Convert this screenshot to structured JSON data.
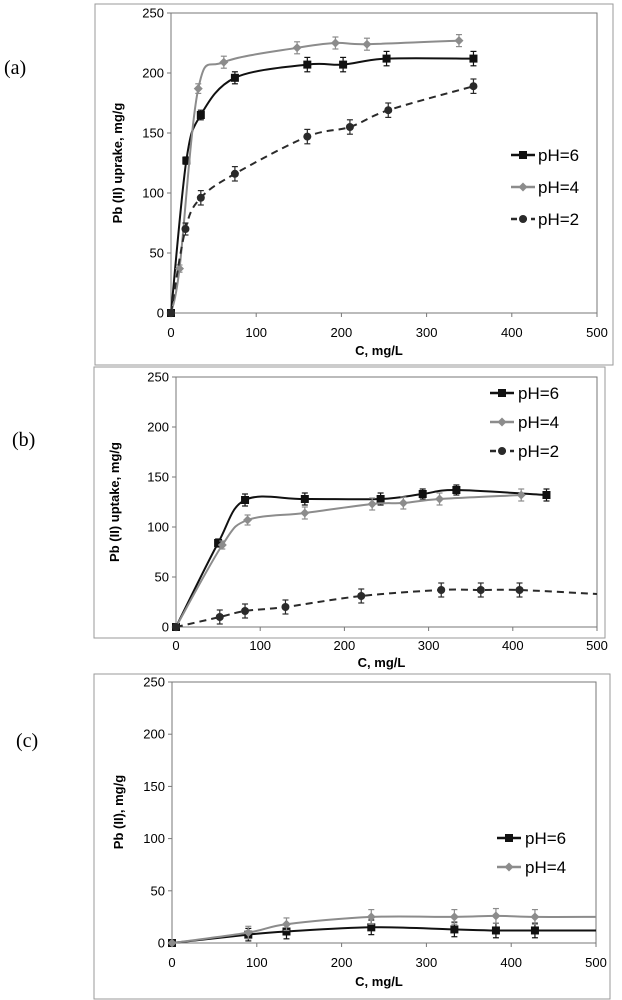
{
  "panels": [
    {
      "label": "(a)",
      "xlabel": "C, mg/L",
      "ylabel": "Pb (II) uprake, mg/g",
      "xticks": [
        "0",
        "100",
        "200",
        "300",
        "400",
        "500"
      ],
      "yticks": [
        "0",
        "50",
        "100",
        "150",
        "200",
        "250"
      ],
      "legend": [
        "pH=6",
        "pH=4",
        "pH=2"
      ]
    },
    {
      "label": "(b)",
      "xlabel": "C, mg/L",
      "ylabel": "Pb (II) uptake, mg/g",
      "xticks": [
        "0",
        "100",
        "200",
        "300",
        "400",
        "500"
      ],
      "yticks": [
        "0",
        "50",
        "100",
        "150",
        "200",
        "250"
      ],
      "legend": [
        "pH=6",
        "pH=4",
        "pH=2"
      ]
    },
    {
      "label": "(c)",
      "xlabel": "C, mg/L",
      "ylabel": "Pb (II), mg/g",
      "xticks": [
        "0",
        "100",
        "200",
        "300",
        "400",
        "500"
      ],
      "yticks": [
        "0",
        "50",
        "100",
        "150",
        "200",
        "250"
      ],
      "legend": [
        "pH=6",
        "pH=4"
      ]
    }
  ],
  "colors": {
    "pH6": "#111111",
    "pH4": "#8c8c8c",
    "pH2": "#2a2a2a",
    "frame": "#777777",
    "border": "#9a9a9a"
  },
  "chart_data": [
    {
      "type": "line",
      "title": "(a)",
      "xlabel": "C, mg/L",
      "ylabel": "Pb (II) uprake, mg/g",
      "xlim": [
        0,
        500
      ],
      "ylim": [
        0,
        250
      ],
      "series": [
        {
          "name": "pH=6",
          "marker": "square",
          "dash": false,
          "x": [
            0,
            18,
            35,
            75,
            160,
            202,
            253,
            355
          ],
          "y": [
            0,
            127,
            165,
            196,
            207,
            207,
            212,
            212
          ],
          "err": [
            0,
            3,
            4,
            5,
            6,
            6,
            6,
            6
          ]
        },
        {
          "name": "pH=4",
          "marker": "diamond",
          "dash": false,
          "x": [
            0,
            10,
            32,
            62,
            148,
            193,
            230,
            338
          ],
          "y": [
            0,
            37,
            187,
            209,
            221,
            225,
            224,
            227
          ],
          "err": [
            0,
            3,
            4,
            5,
            5,
            5,
            5,
            5
          ]
        },
        {
          "name": "pH=2",
          "marker": "circle",
          "dash": true,
          "x": [
            0,
            17,
            35,
            75,
            160,
            210,
            255,
            355
          ],
          "y": [
            0,
            70,
            96,
            116,
            147,
            155,
            169,
            189
          ],
          "err": [
            0,
            5,
            6,
            6,
            6,
            6,
            6,
            6
          ]
        }
      ]
    },
    {
      "type": "line",
      "title": "(b)",
      "xlabel": "C, mg/L",
      "ylabel": "Pb (II) uptake, mg/g",
      "xlim": [
        0,
        500
      ],
      "ylim": [
        0,
        250
      ],
      "series": [
        {
          "name": "pH=6",
          "marker": "square",
          "dash": false,
          "x": [
            0,
            50,
            82,
            153,
            243,
            293,
            333,
            440
          ],
          "y": [
            0,
            84,
            127,
            128,
            128,
            133,
            137,
            132
          ],
          "err": [
            0,
            4,
            6,
            6,
            6,
            5,
            5,
            6
          ]
        },
        {
          "name": "pH=4",
          "marker": "diamond",
          "dash": false,
          "x": [
            0,
            55,
            85,
            153,
            233,
            270,
            313,
            410
          ],
          "y": [
            0,
            82,
            107,
            114,
            123,
            124,
            128,
            132
          ],
          "err": [
            0,
            4,
            5,
            6,
            6,
            6,
            6,
            6
          ]
        },
        {
          "name": "pH=2",
          "marker": "circle",
          "dash": true,
          "x": [
            0,
            52,
            82,
            130,
            220,
            315,
            362,
            408,
            500
          ],
          "y": [
            0,
            10,
            16,
            20,
            31,
            37,
            37,
            37,
            33
          ],
          "err": [
            0,
            7,
            7,
            7,
            7,
            7,
            7,
            7,
            0
          ]
        }
      ]
    },
    {
      "type": "line",
      "title": "(c)",
      "xlabel": "C, mg/L",
      "ylabel": "Pb (II), mg/g",
      "xlim": [
        0,
        500
      ],
      "ylim": [
        0,
        250
      ],
      "series": [
        {
          "name": "pH=6",
          "marker": "square",
          "dash": false,
          "x": [
            0,
            90,
            135,
            235,
            333,
            382,
            428,
            500
          ],
          "y": [
            0,
            8,
            11,
            15,
            13,
            12,
            12,
            12
          ],
          "err": [
            0,
            6,
            7,
            7,
            7,
            7,
            7,
            0
          ]
        },
        {
          "name": "pH=4",
          "marker": "diamond",
          "dash": false,
          "x": [
            0,
            90,
            135,
            235,
            333,
            382,
            428,
            500
          ],
          "y": [
            0,
            10,
            18,
            25,
            25,
            26,
            25,
            25
          ],
          "err": [
            0,
            6,
            6,
            7,
            7,
            7,
            7,
            0
          ]
        }
      ]
    }
  ]
}
